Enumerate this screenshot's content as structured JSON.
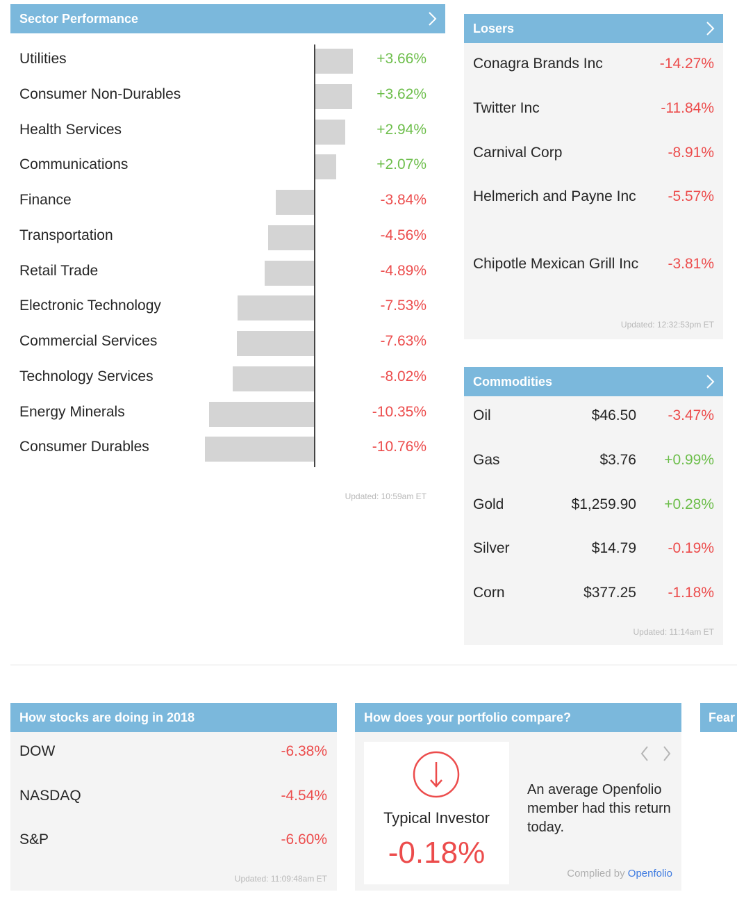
{
  "sector": {
    "title": "Sector Performance",
    "updated": "Updated: 10:59am ET",
    "rows": [
      {
        "name": "Utilities",
        "pct": "+3.66%",
        "value": 3.66
      },
      {
        "name": "Consumer Non-Durables",
        "pct": "+3.62%",
        "value": 3.62
      },
      {
        "name": "Health Services",
        "pct": "+2.94%",
        "value": 2.94
      },
      {
        "name": "Communications",
        "pct": "+2.07%",
        "value": 2.07
      },
      {
        "name": "Finance",
        "pct": "-3.84%",
        "value": -3.84
      },
      {
        "name": "Transportation",
        "pct": "-4.56%",
        "value": -4.56
      },
      {
        "name": "Retail Trade",
        "pct": "-4.89%",
        "value": -4.89
      },
      {
        "name": "Electronic Technology",
        "pct": "-7.53%",
        "value": -7.53
      },
      {
        "name": "Commercial Services",
        "pct": "-7.63%",
        "value": -7.63
      },
      {
        "name": "Technology Services",
        "pct": "-8.02%",
        "value": -8.02
      },
      {
        "name": "Energy Minerals",
        "pct": "-10.35%",
        "value": -10.35
      },
      {
        "name": "Consumer Durables",
        "pct": "-10.76%",
        "value": -10.76
      }
    ]
  },
  "losers": {
    "title": "Losers",
    "updated": "Updated: 12:32:53pm ET",
    "rows": [
      {
        "name": "Conagra Brands Inc",
        "pct": "-14.27%"
      },
      {
        "name": "Twitter Inc",
        "pct": "-11.84%"
      },
      {
        "name": "Carnival Corp",
        "pct": "-8.91%"
      },
      {
        "name": "Helmerich and Payne Inc",
        "pct": "-5.57%"
      },
      {
        "name": "Chipotle Mexican Grill Inc",
        "pct": "-3.81%"
      }
    ]
  },
  "commodities": {
    "title": "Commodities",
    "updated": "Updated: 11:14am ET",
    "rows": [
      {
        "name": "Oil",
        "price": "$46.50",
        "pct": "-3.47%"
      },
      {
        "name": "Gas",
        "price": "$3.76",
        "pct": "+0.99%"
      },
      {
        "name": "Gold",
        "price": "$1,259.90",
        "pct": "+0.28%"
      },
      {
        "name": "Silver",
        "price": "$14.79",
        "pct": "-0.19%"
      },
      {
        "name": "Corn",
        "price": "$377.25",
        "pct": "-1.18%"
      }
    ]
  },
  "indices": {
    "title": "How stocks are doing in 2018",
    "updated": "Updated: 11:09:48am ET",
    "rows": [
      {
        "name": "DOW",
        "pct": "-6.38%"
      },
      {
        "name": "NASDAQ",
        "pct": "-4.54%"
      },
      {
        "name": "S&P",
        "pct": "-6.60%"
      }
    ]
  },
  "portfolio": {
    "title": "How does your portfolio compare?",
    "investor_label": "Typical Investor",
    "investor_pct": "-0.18%",
    "description": "An average Openfolio member had this return today.",
    "compiled_by": "Complied by",
    "compiled_link": "Openfolio"
  },
  "fear": {
    "title": "Fear"
  },
  "colors": {
    "header": "#7bb8dc",
    "positive": "#6dbe4b",
    "negative": "#ec4c4c",
    "link": "#3d7ae0"
  }
}
